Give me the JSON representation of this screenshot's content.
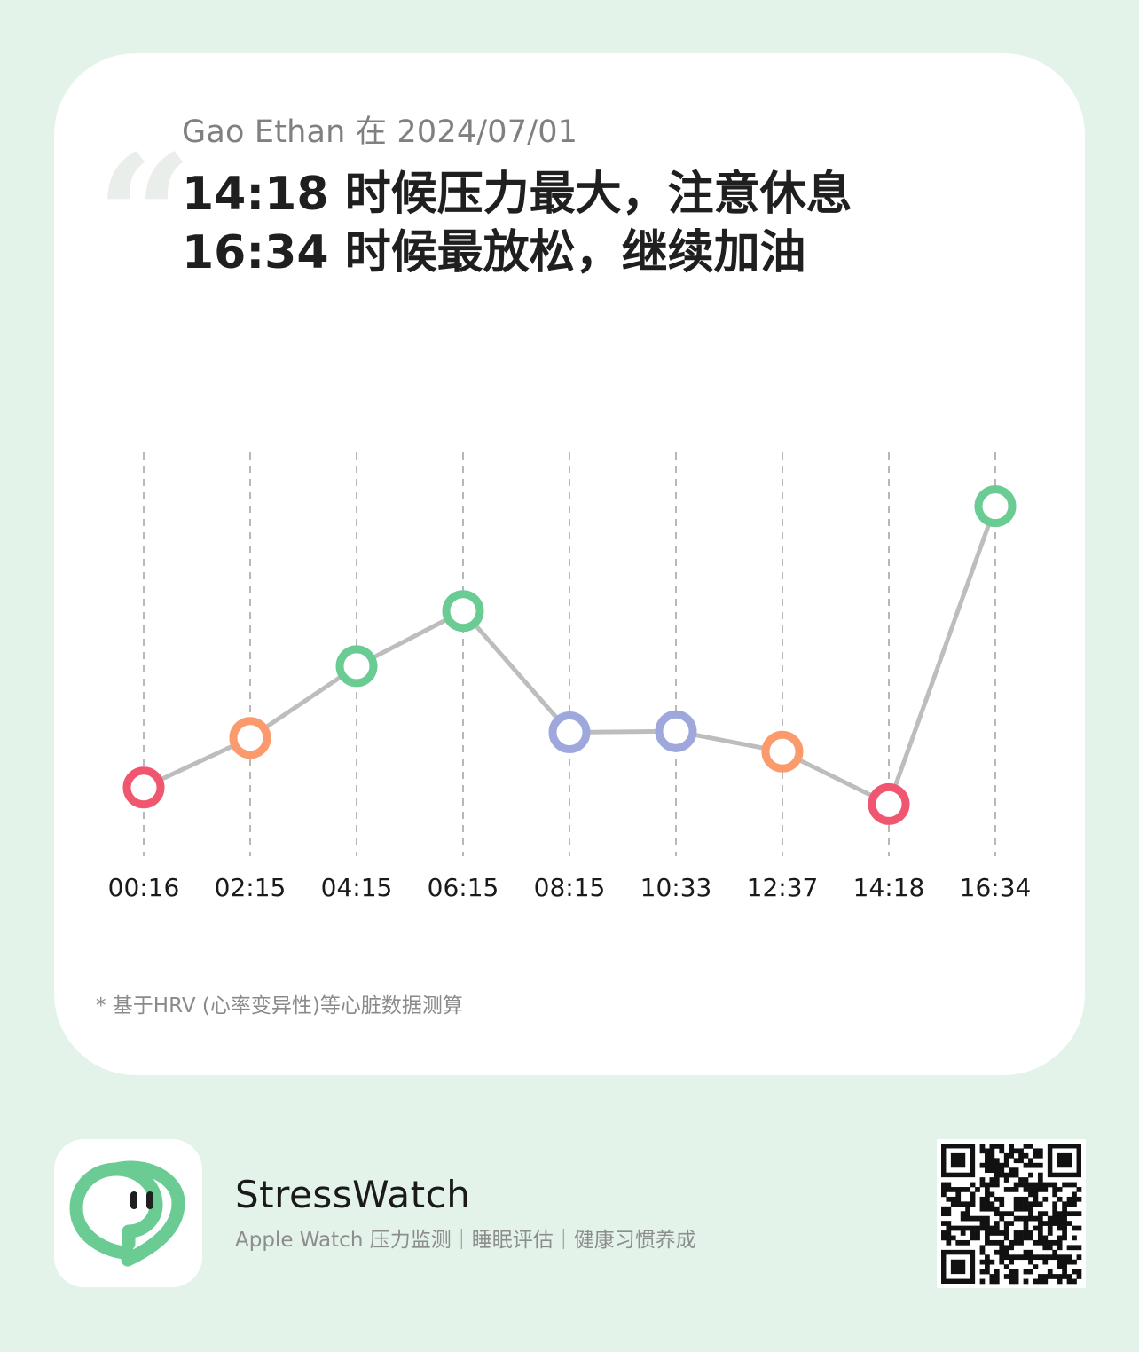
{
  "card": {
    "subtitle": "Gao Ethan 在 2024/07/01",
    "headline_line1": "14:18 时候压力最大，注意休息",
    "headline_line2": "16:34 时候最放松，继续加油",
    "quote_mark": "“",
    "footnote": "* 基于HRV (心率变异性)等心脏数据测算"
  },
  "chart_data": {
    "type": "line",
    "categories": [
      "00:16",
      "02:15",
      "04:15",
      "06:15",
      "08:15",
      "10:33",
      "12:37",
      "14:18",
      "16:34"
    ],
    "series": [
      {
        "values": [
          26,
          35,
          48,
          58,
          36,
          36.2,
          32.5,
          23,
          77
        ],
        "point_colors": [
          "#f0566f",
          "#fb9a6c",
          "#6acb93",
          "#6acb93",
          "#9ea8dc",
          "#9ea8dc",
          "#fb9a6c",
          "#f0566f",
          "#6acb93"
        ]
      }
    ],
    "ylim": [
      0,
      100
    ],
    "grid": "vertical dashed",
    "line_color": "#bdbdbd"
  },
  "footer": {
    "app_name": "StressWatch",
    "tagline": "Apple Watch 压力监测｜睡眠评估｜健康习惯养成",
    "app_icon": "heart-chat-icon",
    "qr": "qr-code"
  },
  "colors": {
    "background": "#e3f3ea",
    "brand_green": "#6acb93",
    "stress_high": "#f0566f",
    "stress_mid": "#fb9a6c",
    "relaxed": "#9ea8dc"
  }
}
